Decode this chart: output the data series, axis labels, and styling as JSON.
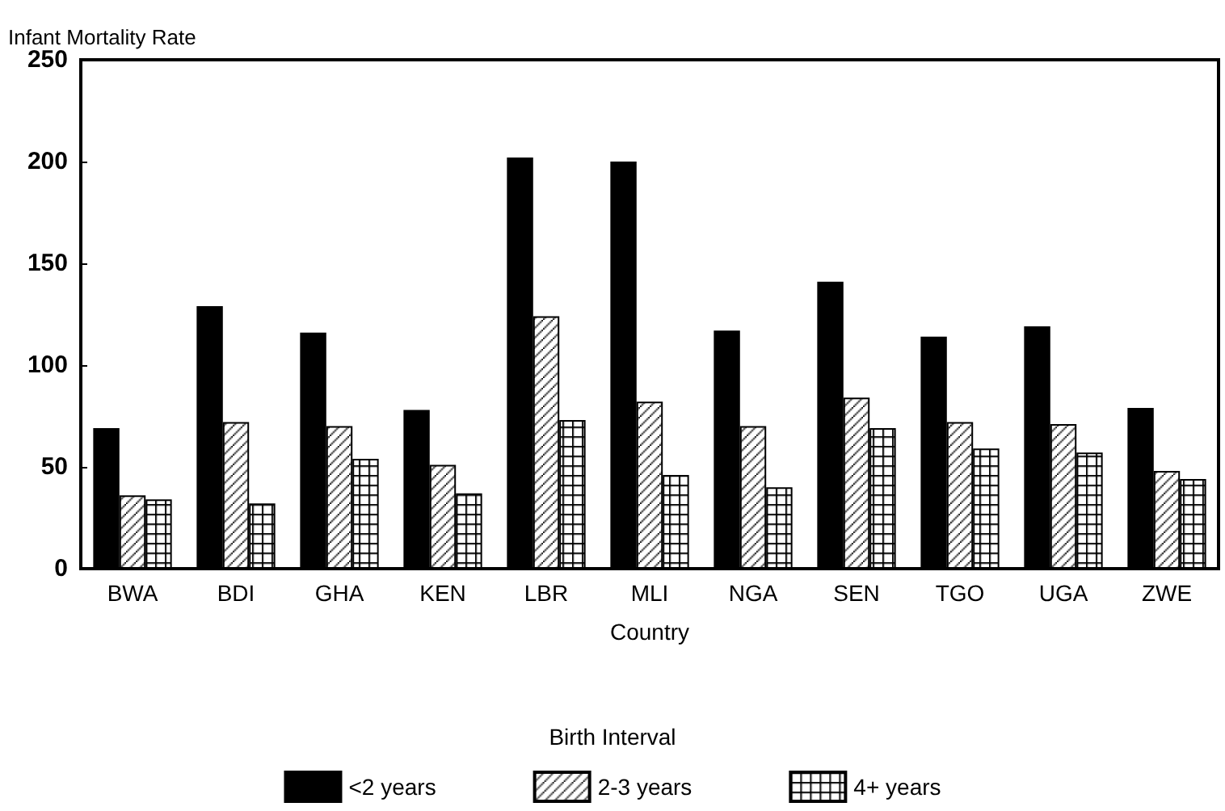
{
  "chart_data": {
    "type": "bar",
    "ylabel": "Infant Mortality Rate",
    "xlabel": "Country",
    "legend_title": "Birth Interval",
    "categories": [
      "BWA",
      "BDI",
      "GHA",
      "KEN",
      "LBR",
      "MLI",
      "NGA",
      "SEN",
      "TGO",
      "UGA",
      "ZWE"
    ],
    "series": [
      {
        "name": "<2 years",
        "color": "#000000",
        "values": [
          69,
          129,
          116,
          78,
          202,
          200,
          117,
          141,
          114,
          119,
          79
        ]
      },
      {
        "name": "2-3 years",
        "color": "#000000",
        "values": [
          36,
          72,
          70,
          51,
          124,
          82,
          70,
          84,
          72,
          71,
          48
        ]
      },
      {
        "name": "4+ years",
        "color": "#000000",
        "values": [
          34,
          32,
          54,
          37,
          73,
          46,
          40,
          69,
          59,
          57,
          44
        ]
      }
    ],
    "ylim": [
      0,
      250
    ],
    "yticks": [
      0,
      50,
      100,
      150,
      200,
      250
    ],
    "grid": false,
    "legend": "bottom"
  }
}
